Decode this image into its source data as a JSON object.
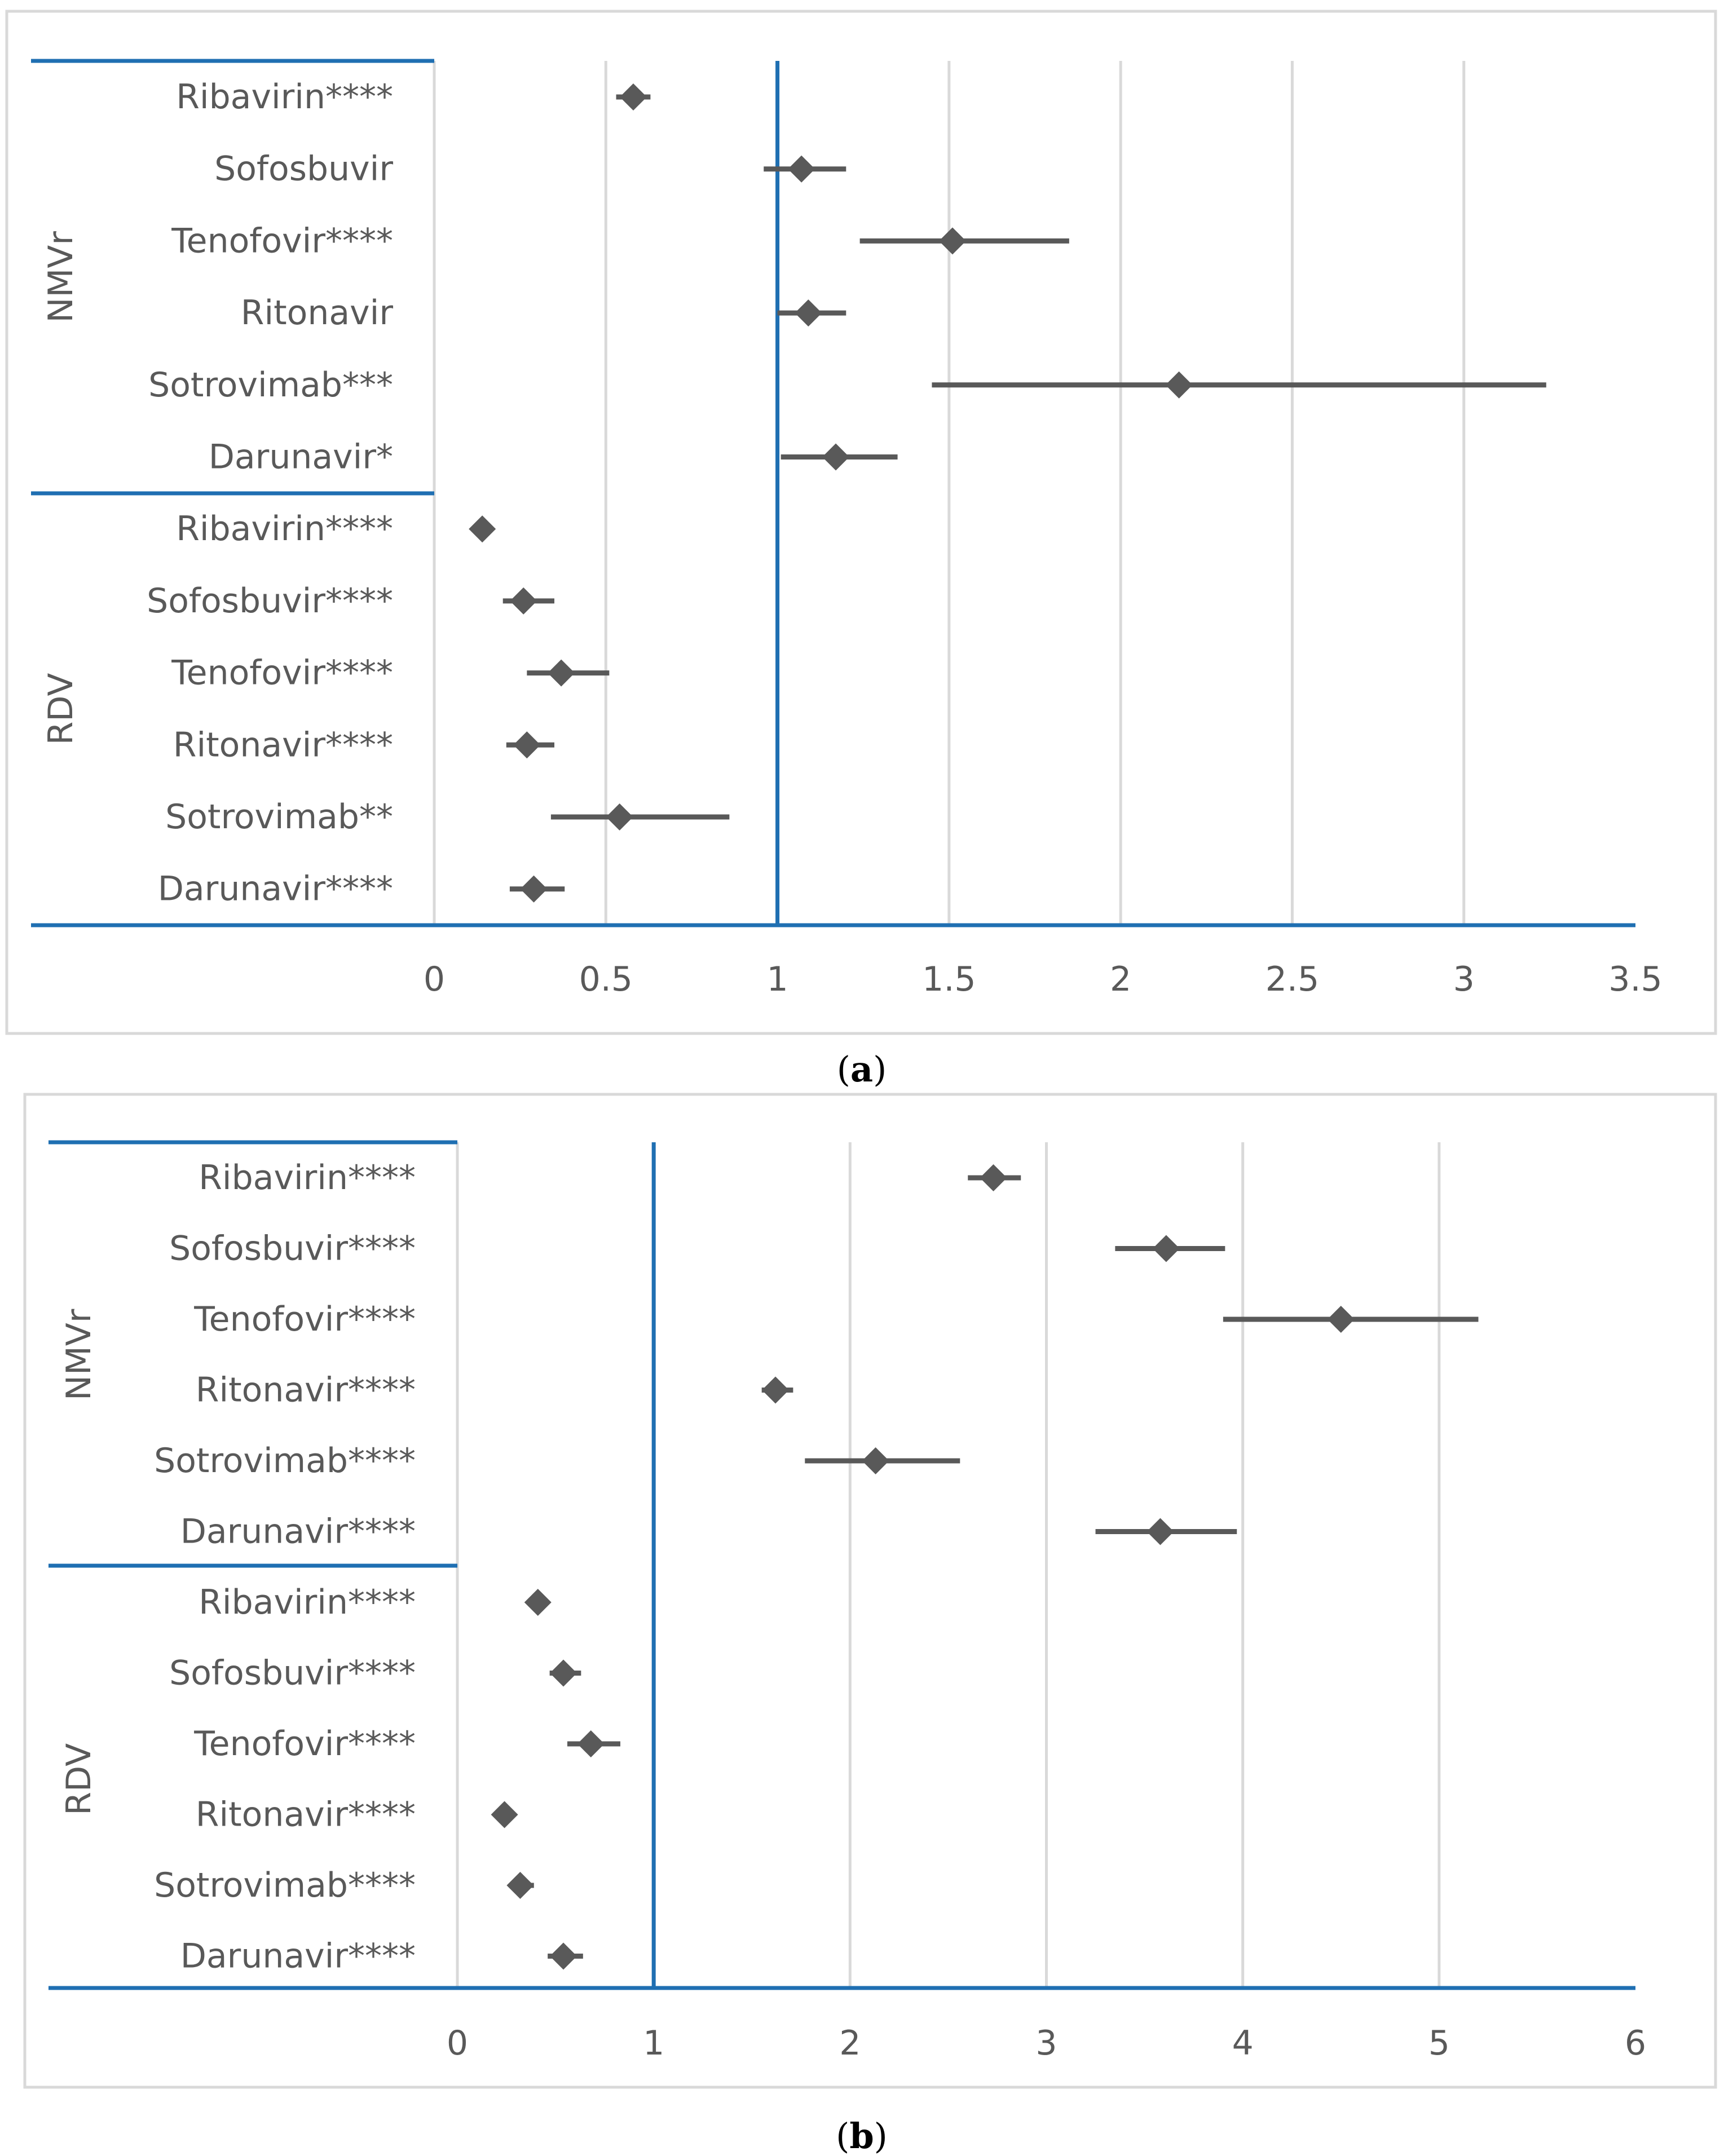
{
  "colors": {
    "frame": "#d9d9d9",
    "grid": "#d9d9d9",
    "axis_line": "#1f6fb2",
    "marker": "#595959",
    "text": "#595959"
  },
  "chart_data": [
    {
      "type": "forest",
      "caption_open": "(",
      "caption_letter": "a",
      "caption_close": ")",
      "xlim": [
        0,
        3.5
      ],
      "xticks": [
        "0",
        "0.5",
        "1",
        "1.5",
        "2",
        "2.5",
        "3",
        "3.5"
      ],
      "xtick_values": [
        0,
        0.5,
        1,
        1.5,
        2,
        2.5,
        3,
        3.5
      ],
      "reference_line": 1,
      "grid": true,
      "groups": [
        {
          "name": "NMVr",
          "rows": [
            {
              "label": "Ribavirin****",
              "value": 0.58,
              "low": 0.53,
              "high": 0.63
            },
            {
              "label": "Sofosbuvir",
              "value": 1.07,
              "low": 0.96,
              "high": 1.2
            },
            {
              "label": "Tenofovir****",
              "value": 1.51,
              "low": 1.24,
              "high": 1.85
            },
            {
              "label": "Ritonavir",
              "value": 1.09,
              "low": 1.0,
              "high": 1.2
            },
            {
              "label": "Sotrovimab***",
              "value": 2.17,
              "low": 1.45,
              "high": 3.24
            },
            {
              "label": "Darunavir*",
              "value": 1.17,
              "low": 1.01,
              "high": 1.35
            }
          ]
        },
        {
          "name": "RDV",
          "rows": [
            {
              "label": "Ribavirin****",
              "value": 0.14,
              "low": 0.11,
              "high": 0.17
            },
            {
              "label": "Sofosbuvir****",
              "value": 0.26,
              "low": 0.2,
              "high": 0.35
            },
            {
              "label": "Tenofovir****",
              "value": 0.37,
              "low": 0.27,
              "high": 0.51
            },
            {
              "label": "Ritonavir****",
              "value": 0.27,
              "low": 0.21,
              "high": 0.35
            },
            {
              "label": "Sotrovimab**",
              "value": 0.54,
              "low": 0.34,
              "high": 0.86
            },
            {
              "label": "Darunavir****",
              "value": 0.29,
              "low": 0.22,
              "high": 0.38
            }
          ]
        }
      ]
    },
    {
      "type": "forest",
      "caption_open": "(",
      "caption_letter": "b",
      "caption_close": ")",
      "xlim": [
        0,
        6
      ],
      "xticks": [
        "0",
        "1",
        "2",
        "3",
        "4",
        "5",
        "6"
      ],
      "xtick_values": [
        0,
        1,
        2,
        3,
        4,
        5,
        6
      ],
      "reference_line": 1,
      "grid": true,
      "groups": [
        {
          "name": "NMVr",
          "rows": [
            {
              "label": "Ribavirin****",
              "value": 2.73,
              "low": 2.6,
              "high": 2.87
            },
            {
              "label": "Sofosbuvir****",
              "value": 3.61,
              "low": 3.35,
              "high": 3.91
            },
            {
              "label": "Tenofovir****",
              "value": 4.5,
              "low": 3.9,
              "high": 5.2
            },
            {
              "label": "Ritonavir****",
              "value": 1.62,
              "low": 1.55,
              "high": 1.71
            },
            {
              "label": "Sotrovimab****",
              "value": 2.13,
              "low": 1.77,
              "high": 2.56
            },
            {
              "label": "Darunavir****",
              "value": 3.58,
              "low": 3.25,
              "high": 3.97
            }
          ]
        },
        {
          "name": "RDV",
          "rows": [
            {
              "label": "Ribavirin****",
              "value": 0.41,
              "low": 0.38,
              "high": 0.44
            },
            {
              "label": "Sofosbuvir****",
              "value": 0.54,
              "low": 0.47,
              "high": 0.63
            },
            {
              "label": "Tenofovir****",
              "value": 0.68,
              "low": 0.56,
              "high": 0.83
            },
            {
              "label": "Ritonavir****",
              "value": 0.24,
              "low": 0.21,
              "high": 0.28
            },
            {
              "label": "Sotrovimab****",
              "value": 0.32,
              "low": 0.27,
              "high": 0.39
            },
            {
              "label": "Darunavir****",
              "value": 0.54,
              "low": 0.46,
              "high": 0.64
            }
          ]
        }
      ]
    }
  ]
}
